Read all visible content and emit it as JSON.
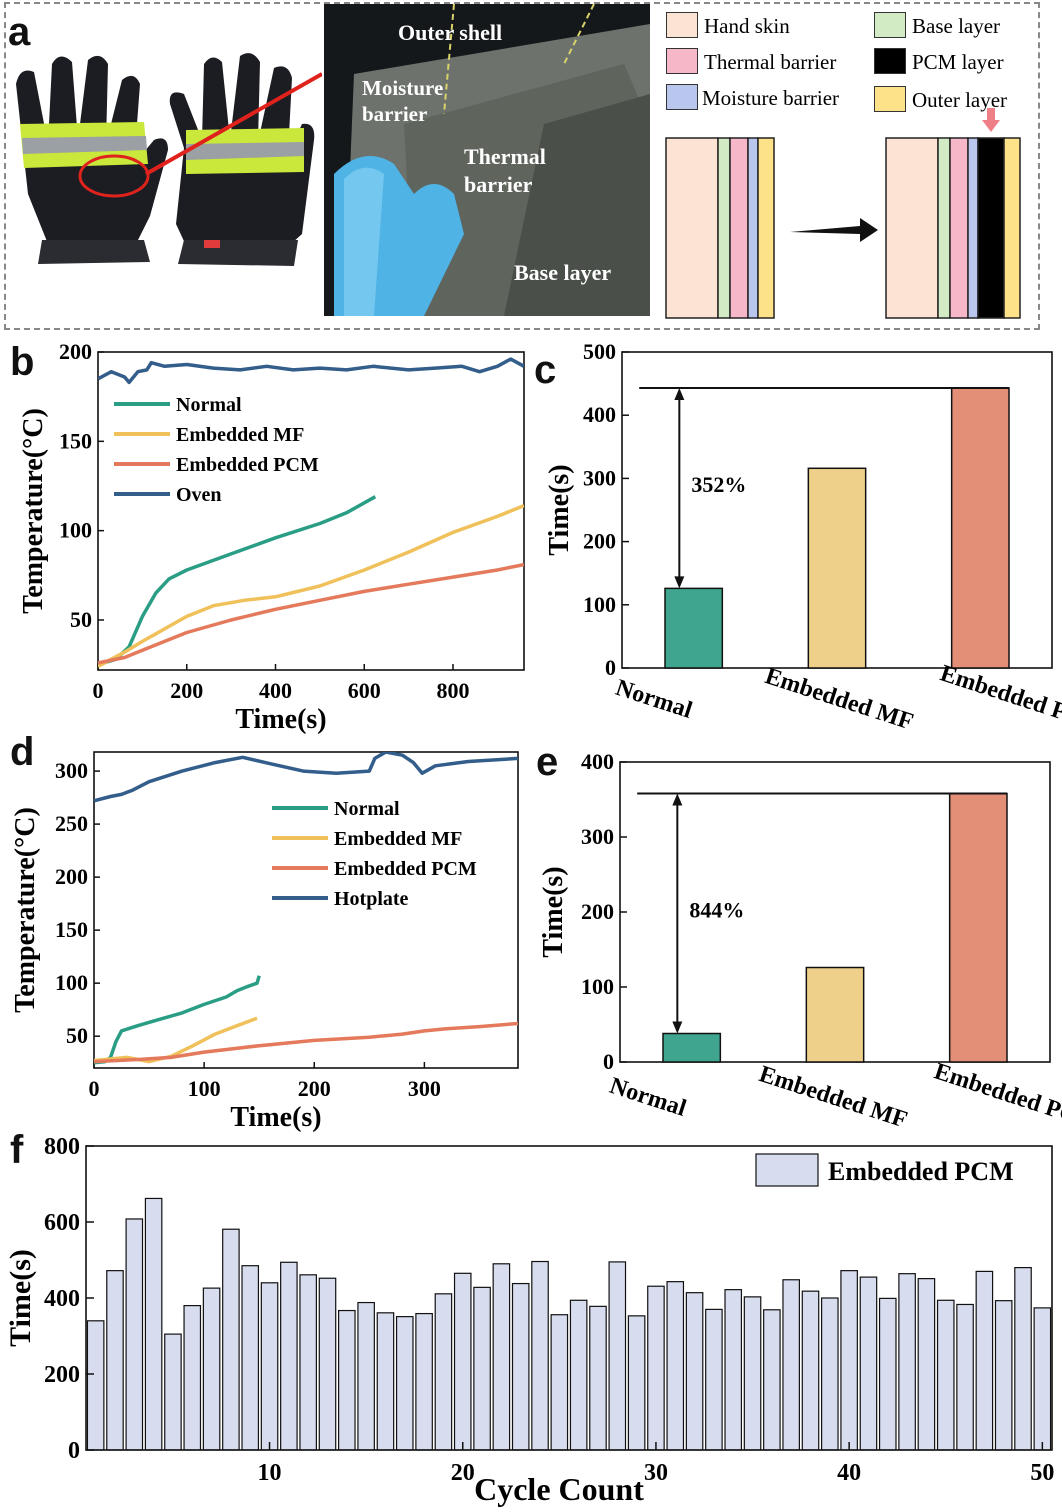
{
  "panel_a": {
    "letter": "a",
    "photo_labels": {
      "outer_shell": "Outer shell",
      "moisture_barrier_1": "Moisture",
      "moisture_barrier_2": "barrier",
      "thermal_barrier_1": "Thermal",
      "thermal_barrier_2": "barrier",
      "base_layer": "Base layer"
    },
    "legend": [
      {
        "label": "Hand skin",
        "color": "#fce4d4"
      },
      {
        "label": "Base layer",
        "color": "#d3ebc5"
      },
      {
        "label": "Thermal barrier",
        "color": "#f6b8c8"
      },
      {
        "label": "PCM layer",
        "color": "#000000"
      },
      {
        "label": "Moisture barrier",
        "color": "#b9c6ee"
      },
      {
        "label": "Outer layer",
        "color": "#fde28a"
      }
    ]
  },
  "chart_data": [
    {
      "id": "b",
      "letter": "b",
      "type": "line",
      "xlabel": "Time(s)",
      "ylabel": "Temperature(°C)",
      "xlim": [
        0,
        960
      ],
      "ylim": [
        22,
        200
      ],
      "xticks": [
        0,
        200,
        400,
        600,
        800
      ],
      "yticks": [
        50,
        100,
        150,
        200
      ],
      "legend_position": "top-left",
      "series": [
        {
          "name": "Normal",
          "color": "#2a9d85",
          "points": [
            [
              0,
              25
            ],
            [
              40,
              28
            ],
            [
              70,
              35
            ],
            [
              100,
              52
            ],
            [
              130,
              65
            ],
            [
              160,
              73
            ],
            [
              200,
              78
            ],
            [
              300,
              87
            ],
            [
              400,
              96
            ],
            [
              500,
              104
            ],
            [
              560,
              110
            ],
            [
              625,
              119
            ]
          ]
        },
        {
          "name": "Embedded MF",
          "color": "#f0c15a",
          "points": [
            [
              0,
              24
            ],
            [
              60,
              32
            ],
            [
              100,
              38
            ],
            [
              150,
              45
            ],
            [
              200,
              52
            ],
            [
              260,
              58
            ],
            [
              330,
              61
            ],
            [
              400,
              63
            ],
            [
              500,
              69
            ],
            [
              600,
              78
            ],
            [
              700,
              88
            ],
            [
              800,
              99
            ],
            [
              900,
              108
            ],
            [
              960,
              114
            ]
          ]
        },
        {
          "name": "Embedded PCM",
          "color": "#e4795b",
          "points": [
            [
              0,
              26
            ],
            [
              60,
              29
            ],
            [
              100,
              33
            ],
            [
              150,
              38
            ],
            [
              200,
              43
            ],
            [
              300,
              50
            ],
            [
              400,
              56
            ],
            [
              500,
              61
            ],
            [
              600,
              66
            ],
            [
              700,
              70
            ],
            [
              800,
              74
            ],
            [
              900,
              78
            ],
            [
              960,
              81
            ]
          ]
        },
        {
          "name": "Oven",
          "color": "#335d8a",
          "points": [
            [
              0,
              185
            ],
            [
              30,
              189
            ],
            [
              60,
              186
            ],
            [
              70,
              183
            ],
            [
              90,
              189
            ],
            [
              110,
              190
            ],
            [
              120,
              194
            ],
            [
              150,
              192
            ],
            [
              200,
              193
            ],
            [
              260,
              191
            ],
            [
              320,
              190
            ],
            [
              380,
              192
            ],
            [
              440,
              190
            ],
            [
              500,
              191
            ],
            [
              560,
              190
            ],
            [
              620,
              192
            ],
            [
              700,
              190
            ],
            [
              760,
              191
            ],
            [
              820,
              192
            ],
            [
              860,
              189
            ],
            [
              900,
              192
            ],
            [
              930,
              196
            ],
            [
              960,
              192
            ]
          ]
        }
      ]
    },
    {
      "id": "c",
      "letter": "c",
      "type": "bar",
      "ylabel": "Time(s)",
      "ylim": [
        0,
        500
      ],
      "yticks": [
        0,
        100,
        200,
        300,
        400,
        500
      ],
      "categories": [
        "Normal",
        "Embedded MF",
        "Embedded PCM"
      ],
      "values": [
        126,
        316,
        443
      ],
      "colors": [
        "#3fa58e",
        "#eed08a",
        "#e38f77"
      ],
      "annotation": "352%"
    },
    {
      "id": "d",
      "letter": "d",
      "type": "line",
      "xlabel": "Time(s)",
      "ylabel": "Temperature(°C)",
      "xlim": [
        0,
        385
      ],
      "ylim": [
        20,
        318
      ],
      "xticks": [
        0,
        100,
        200,
        300
      ],
      "yticks": [
        50,
        100,
        150,
        200,
        250,
        300
      ],
      "legend_position": "center",
      "series": [
        {
          "name": "Normal",
          "color": "#2a9d85",
          "points": [
            [
              0,
              25
            ],
            [
              10,
              26
            ],
            [
              15,
              30
            ],
            [
              20,
              45
            ],
            [
              25,
              55
            ],
            [
              40,
              60
            ],
            [
              60,
              66
            ],
            [
              80,
              72
            ],
            [
              100,
              80
            ],
            [
              120,
              87
            ],
            [
              130,
              93
            ],
            [
              140,
              97
            ],
            [
              148,
              100
            ],
            [
              150,
              107
            ]
          ]
        },
        {
          "name": "Embedded MF",
          "color": "#f0c15a",
          "points": [
            [
              0,
              27
            ],
            [
              10,
              28
            ],
            [
              30,
              30
            ],
            [
              50,
              26
            ],
            [
              70,
              31
            ],
            [
              90,
              41
            ],
            [
              110,
              52
            ],
            [
              130,
              60
            ],
            [
              148,
              67
            ]
          ]
        },
        {
          "name": "Embedded PCM",
          "color": "#e4795b",
          "points": [
            [
              0,
              26
            ],
            [
              40,
              28
            ],
            [
              70,
              30
            ],
            [
              100,
              35
            ],
            [
              150,
              41
            ],
            [
              200,
              46
            ],
            [
              250,
              49
            ],
            [
              280,
              52
            ],
            [
              300,
              55
            ],
            [
              320,
              57
            ],
            [
              350,
              59
            ],
            [
              385,
              62
            ]
          ]
        },
        {
          "name": "Hotplate",
          "color": "#335d8a",
          "points": [
            [
              0,
              272
            ],
            [
              15,
              276
            ],
            [
              25,
              278
            ],
            [
              35,
              282
            ],
            [
              50,
              290
            ],
            [
              80,
              300
            ],
            [
              110,
              308
            ],
            [
              135,
              313
            ],
            [
              160,
              307
            ],
            [
              190,
              300
            ],
            [
              220,
              298
            ],
            [
              250,
              300
            ],
            [
              255,
              312
            ],
            [
              265,
              318
            ],
            [
              280,
              315
            ],
            [
              290,
              308
            ],
            [
              298,
              298
            ],
            [
              310,
              305
            ],
            [
              340,
              309
            ],
            [
              385,
              312
            ]
          ]
        }
      ]
    },
    {
      "id": "e",
      "letter": "e",
      "type": "bar",
      "ylabel": "Time(s)",
      "ylim": [
        0,
        400
      ],
      "yticks": [
        0,
        100,
        200,
        300,
        400
      ],
      "categories": [
        "Normal",
        "Embedded MF",
        "Embedded PCM"
      ],
      "values": [
        38,
        126,
        358
      ],
      "colors": [
        "#3fa58e",
        "#eed08a",
        "#e38f77"
      ],
      "annotation": "844%"
    },
    {
      "id": "f",
      "letter": "f",
      "type": "bar",
      "xlabel": "Cycle Count",
      "ylabel": "Time(s)",
      "ylim": [
        0,
        800
      ],
      "yticks": [
        0,
        200,
        400,
        600,
        800
      ],
      "xticks": [
        10,
        20,
        30,
        40,
        50
      ],
      "legend": "Embedded PCM",
      "color": "#d7dcef",
      "categories": [
        1,
        2,
        3,
        4,
        5,
        6,
        7,
        8,
        9,
        10,
        11,
        12,
        13,
        14,
        15,
        16,
        17,
        18,
        19,
        20,
        21,
        22,
        23,
        24,
        25,
        26,
        27,
        28,
        29,
        30,
        31,
        32,
        33,
        34,
        35,
        36,
        37,
        38,
        39,
        40,
        41,
        42,
        43,
        44,
        45,
        46,
        47,
        48,
        49,
        50
      ],
      "values": [
        340,
        472,
        608,
        662,
        305,
        380,
        426,
        581,
        485,
        440,
        494,
        461,
        452,
        367,
        388,
        361,
        351,
        359,
        411,
        465,
        428,
        490,
        438,
        496,
        356,
        394,
        378,
        495,
        353,
        431,
        443,
        414,
        370,
        422,
        403,
        369,
        448,
        418,
        400,
        472,
        455,
        399,
        464,
        451,
        394,
        383,
        470,
        393,
        480,
        374
      ]
    }
  ]
}
